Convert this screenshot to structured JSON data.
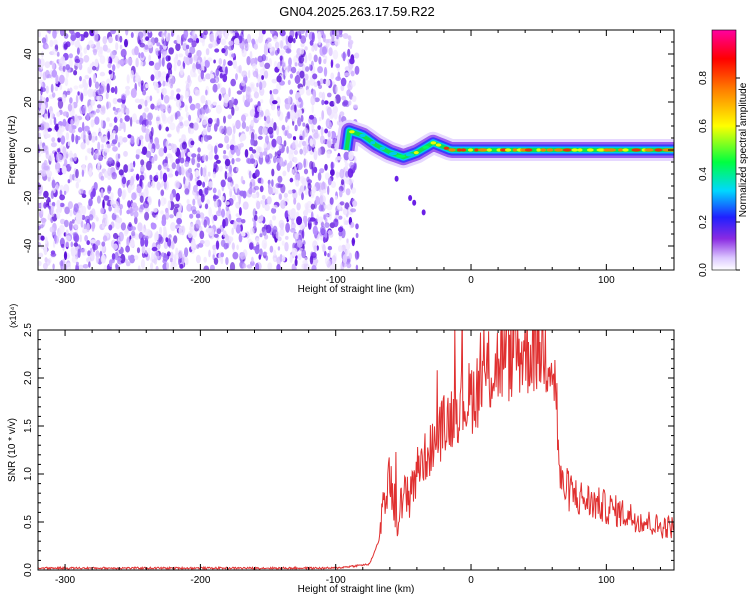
{
  "title": "GN04.2025.263.17.59.R22",
  "chart_data": [
    {
      "type": "heatmap",
      "title": "GN04.2025.263.17.59.R22",
      "xlabel": "Height of straight line (km)",
      "ylabel": "Frequency (Hz)",
      "xlim": [
        -320,
        150
      ],
      "ylim": [
        -50,
        50
      ],
      "xticks": [
        -300,
        -200,
        -100,
        0,
        100
      ],
      "yticks": [
        -40,
        -20,
        0,
        20,
        40
      ],
      "noise_region_x": [
        -320,
        -90
      ],
      "signal_band": [
        {
          "x": -90,
          "freq": 8
        },
        {
          "x": -80,
          "freq": 6
        },
        {
          "x": -70,
          "freq": 2
        },
        {
          "x": -60,
          "freq": -1
        },
        {
          "x": -50,
          "freq": -3
        },
        {
          "x": -40,
          "freq": -1
        },
        {
          "x": -28,
          "freq": 3
        },
        {
          "x": -15,
          "freq": 0
        },
        {
          "x": 0,
          "freq": 0
        },
        {
          "x": 50,
          "freq": 0
        },
        {
          "x": 100,
          "freq": 0
        },
        {
          "x": 150,
          "freq": 0
        }
      ],
      "colorbar": {
        "label": "Normalized spectral amplitude",
        "range": [
          0,
          1
        ],
        "ticks": [
          "0.0",
          "0.2",
          "0.4",
          "0.6",
          "0.8"
        ],
        "colors": [
          "#ffffff",
          "#dcc8ff",
          "#8a2be2",
          "#2020ff",
          "#00d8ff",
          "#00ff40",
          "#ffff00",
          "#ff8000",
          "#ff0000",
          "#ff00a0"
        ]
      },
      "grid": false
    },
    {
      "type": "line",
      "xlabel": "Height of straight line (km)",
      "ylabel": "SNR (10 * v/v)",
      "exponent_label": "(x10⁴)",
      "xlim": [
        -320,
        150
      ],
      "ylim": [
        0,
        2.5
      ],
      "xticks": [
        -300,
        -200,
        -100,
        0,
        100
      ],
      "yticks": [
        "0.0",
        "0.5",
        "1.0",
        "1.5",
        "2.0",
        "2.5"
      ],
      "series": [
        {
          "color": "#e03030",
          "x": [
            -320,
            -100,
            -75,
            -68,
            -62,
            -58,
            -55,
            -50,
            -45,
            -40,
            -35,
            -30,
            -25,
            -20,
            -15,
            -10,
            -5,
            0,
            10,
            20,
            30,
            40,
            50,
            55,
            60,
            63,
            66,
            70,
            80,
            90,
            100,
            110,
            120,
            130,
            140,
            150
          ],
          "values": [
            0.01,
            0.01,
            0.05,
            0.3,
            0.9,
            0.8,
            0.55,
            0.7,
            0.85,
            1.05,
            1.15,
            1.25,
            1.4,
            1.5,
            1.6,
            1.7,
            1.75,
            1.8,
            2.0,
            2.15,
            2.25,
            2.3,
            2.35,
            2.3,
            2.25,
            1.8,
            0.9,
            0.85,
            0.75,
            0.7,
            0.65,
            0.6,
            0.55,
            0.5,
            0.45,
            0.45
          ]
        }
      ],
      "grid": false
    }
  ]
}
